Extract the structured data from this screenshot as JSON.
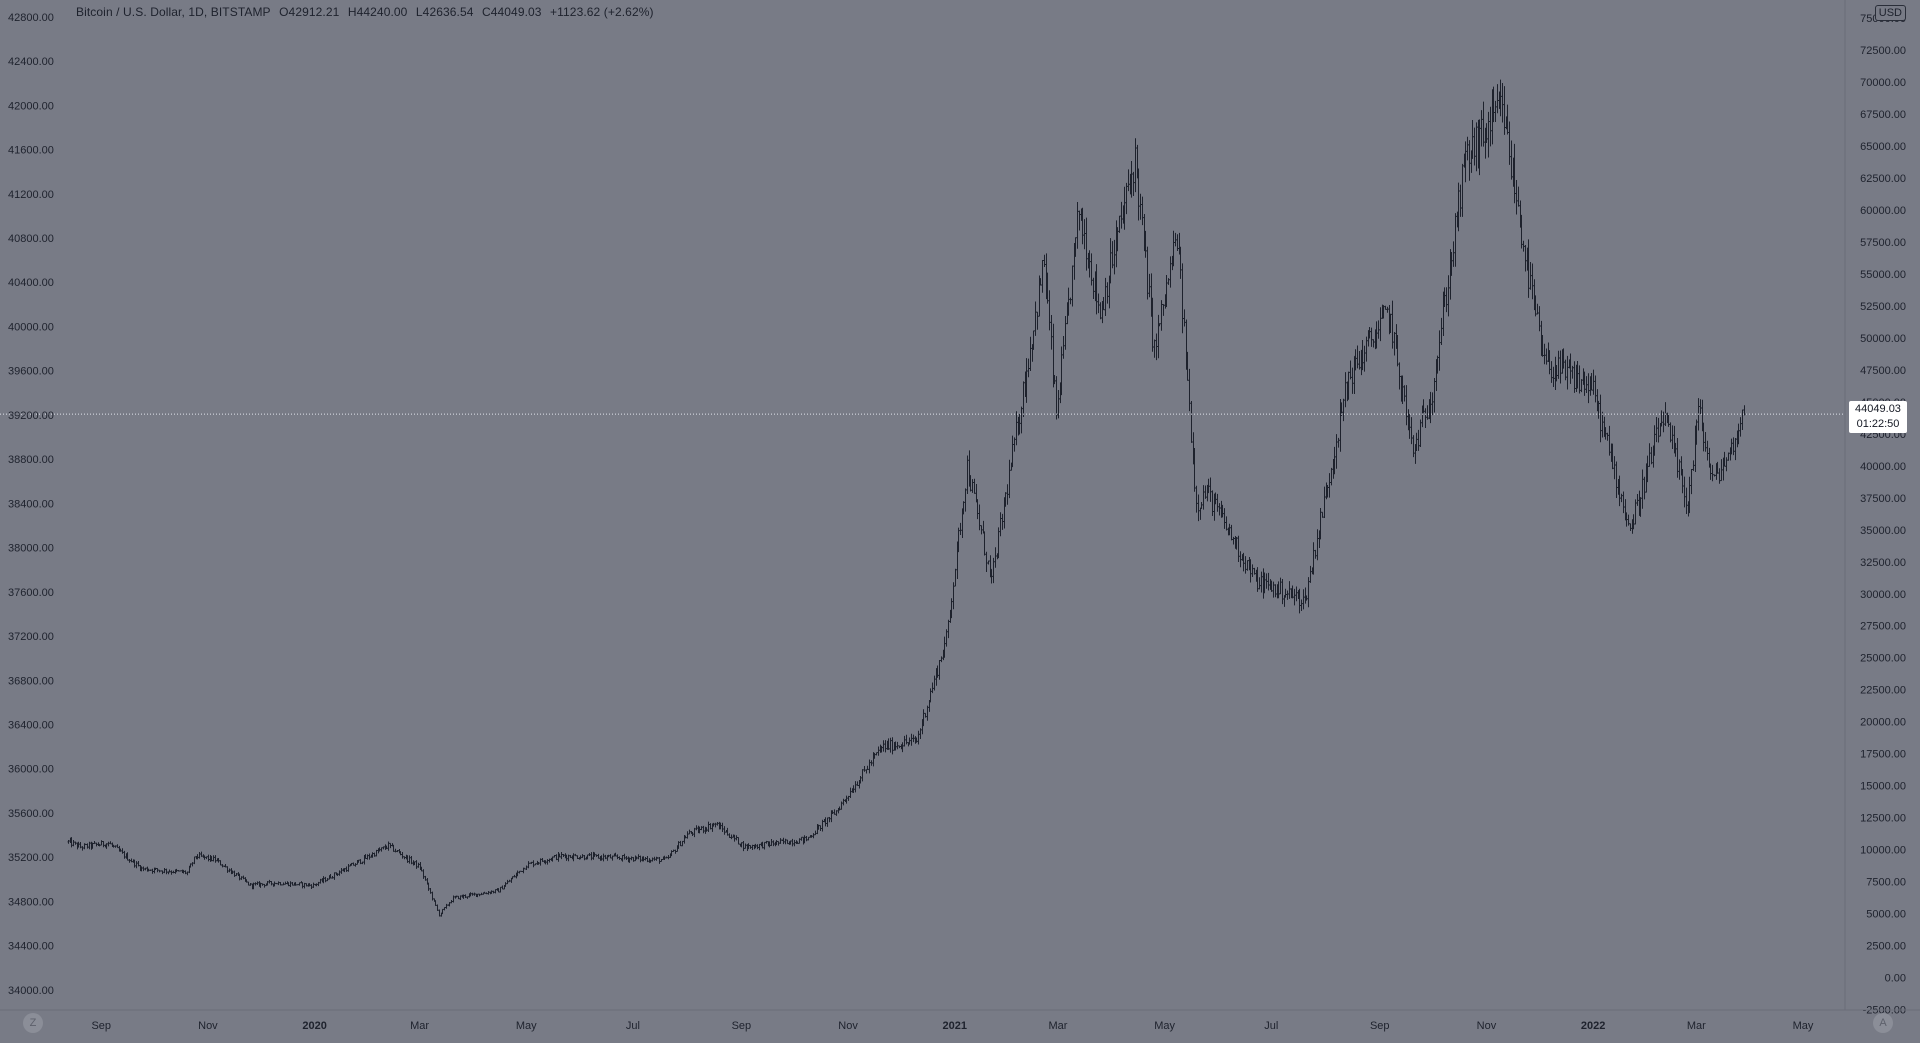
{
  "header": {
    "symbol": "Bitcoin / U.S. Dollar, 1D, BITSTAMP",
    "open": "O42912.21",
    "high": "H44240.00",
    "low": "L42636.54",
    "close": "C44049.03",
    "change": "+1123.62 (+2.62%)"
  },
  "currency_badge": "USD",
  "last_price_tag": {
    "price": "44049.03",
    "countdown": "01:22:50"
  },
  "corner_icons": {
    "left": "Z",
    "right": "A"
  },
  "colors": {
    "background": "#787b86",
    "candles": "#1e222d",
    "text": "#1e222d",
    "price_line": "#e0e3eb"
  },
  "chart_data": {
    "type": "ohlc",
    "title": "Bitcoin / U.S. Dollar, 1D, BITSTAMP",
    "xlabel": "",
    "ylabel": "",
    "left_axis": {
      "ticks": [
        "42800.00",
        "42400.00",
        "42000.00",
        "41600.00",
        "41200.00",
        "40800.00",
        "40400.00",
        "40000.00",
        "39600.00",
        "39200.00",
        "38800.00",
        "38400.00",
        "38000.00",
        "37600.00",
        "37200.00",
        "36800.00",
        "36400.00",
        "36000.00",
        "35600.00",
        "35200.00",
        "34800.00",
        "34400.00",
        "34000.00"
      ],
      "range": [
        33800,
        42880
      ]
    },
    "right_axis": {
      "ticks": [
        "75000.00",
        "72500.00",
        "70000.00",
        "67500.00",
        "65000.00",
        "62500.00",
        "60000.00",
        "57500.00",
        "55000.00",
        "52500.00",
        "50000.00",
        "47500.00",
        "45000.00",
        "42500.00",
        "40000.00",
        "37500.00",
        "35000.00",
        "32500.00",
        "30000.00",
        "27500.00",
        "25000.00",
        "22500.00",
        "20000.00",
        "17500.00",
        "15000.00",
        "12500.00",
        "10000.00",
        "7500.00",
        "5000.00",
        "2500.00",
        "0.00",
        "-2500.00"
      ],
      "range": [
        -2700,
        75800
      ],
      "unit": "USD"
    },
    "x_axis": {
      "ticks": [
        {
          "label": "Sep",
          "date": "2019-09-01",
          "major": false
        },
        {
          "label": "Nov",
          "date": "2019-11-01",
          "major": false
        },
        {
          "label": "2020",
          "date": "2020-01-01",
          "major": true
        },
        {
          "label": "Mar",
          "date": "2020-03-01",
          "major": false
        },
        {
          "label": "May",
          "date": "2020-05-01",
          "major": false
        },
        {
          "label": "Jul",
          "date": "2020-07-01",
          "major": false
        },
        {
          "label": "Sep",
          "date": "2020-09-01",
          "major": false
        },
        {
          "label": "Nov",
          "date": "2020-11-01",
          "major": false
        },
        {
          "label": "2021",
          "date": "2021-01-01",
          "major": true
        },
        {
          "label": "Mar",
          "date": "2021-03-01",
          "major": false
        },
        {
          "label": "May",
          "date": "2021-05-01",
          "major": false
        },
        {
          "label": "Jul",
          "date": "2021-07-01",
          "major": false
        },
        {
          "label": "Sep",
          "date": "2021-09-01",
          "major": false
        },
        {
          "label": "Nov",
          "date": "2021-11-01",
          "major": false
        },
        {
          "label": "2022",
          "date": "2022-01-01",
          "major": true
        },
        {
          "label": "Mar",
          "date": "2022-03-01",
          "major": false
        },
        {
          "label": "May",
          "date": "2022-05-01",
          "major": false
        }
      ],
      "range": [
        "2019-08-13",
        "2022-05-25"
      ]
    },
    "last_price_line": 44049.03,
    "grid": false,
    "series": [
      {
        "interval": "1D",
        "anchors": [
          [
            "2019-08-13",
            10600
          ],
          [
            "2019-08-20",
            10200
          ],
          [
            "2019-09-05",
            10500
          ],
          [
            "2019-09-24",
            8500
          ],
          [
            "2019-10-20",
            8200
          ],
          [
            "2019-10-25",
            9500
          ],
          [
            "2019-11-05",
            9200
          ],
          [
            "2019-11-25",
            7200
          ],
          [
            "2019-12-10",
            7400
          ],
          [
            "2019-12-31",
            7200
          ],
          [
            "2020-01-20",
            8600
          ],
          [
            "2020-02-12",
            10300
          ],
          [
            "2020-03-01",
            8600
          ],
          [
            "2020-03-12",
            4900
          ],
          [
            "2020-03-20",
            6200
          ],
          [
            "2020-04-15",
            6800
          ],
          [
            "2020-05-01",
            8800
          ],
          [
            "2020-05-20",
            9500
          ],
          [
            "2020-06-15",
            9400
          ],
          [
            "2020-07-20",
            9200
          ],
          [
            "2020-08-01",
            11200
          ],
          [
            "2020-08-17",
            12000
          ],
          [
            "2020-09-03",
            10200
          ],
          [
            "2020-10-08",
            10800
          ],
          [
            "2020-10-25",
            13000
          ],
          [
            "2020-11-20",
            18000
          ],
          [
            "2020-12-10",
            18500
          ],
          [
            "2020-12-27",
            26500
          ],
          [
            "2021-01-08",
            40000
          ],
          [
            "2021-01-22",
            31000
          ],
          [
            "2021-02-08",
            45000
          ],
          [
            "2021-02-21",
            56000
          ],
          [
            "2021-02-28",
            44000
          ],
          [
            "2021-03-13",
            60000
          ],
          [
            "2021-03-25",
            52000
          ],
          [
            "2021-04-14",
            64000
          ],
          [
            "2021-04-25",
            49000
          ],
          [
            "2021-05-08",
            58000
          ],
          [
            "2021-05-19",
            37000
          ],
          [
            "2021-05-25",
            38000
          ],
          [
            "2021-06-22",
            31000
          ],
          [
            "2021-07-20",
            29500
          ],
          [
            "2021-08-14",
            47000
          ],
          [
            "2021-09-06",
            52000
          ],
          [
            "2021-09-20",
            41000
          ],
          [
            "2021-10-01",
            46000
          ],
          [
            "2021-10-20",
            64000
          ],
          [
            "2021-11-10",
            68000
          ],
          [
            "2021-11-26",
            54000
          ],
          [
            "2021-12-04",
            48000
          ],
          [
            "2021-12-31",
            46200
          ],
          [
            "2022-01-22",
            35000
          ],
          [
            "2022-02-10",
            44000
          ],
          [
            "2022-02-24",
            37000
          ],
          [
            "2022-03-02",
            44400
          ],
          [
            "2022-03-10",
            38800
          ],
          [
            "2022-03-20",
            41000
          ],
          [
            "2022-03-28",
            44049.03
          ]
        ]
      }
    ]
  }
}
